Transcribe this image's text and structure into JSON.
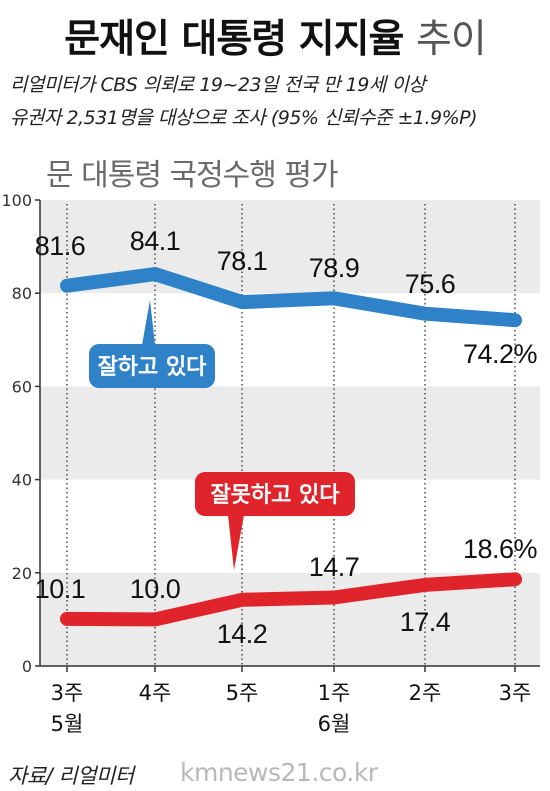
{
  "title_main": "문재인 대통령 지지율",
  "title_light": "추이",
  "description": [
    "리얼미터가 CBS 의뢰로 19~23일 전국 만 19세 이상",
    "유권자 2,531명을 대상으로 조사 (95% 신뢰수준 ±1.9%P)"
  ],
  "source": "자료/ 리얼미터",
  "watermark": "kmnews21.co.kr",
  "colors": {
    "positive": "#2f82c8",
    "negative": "#e0242b",
    "band": "#ebebeb"
  },
  "chart_data": {
    "type": "line",
    "title": "문 대통령 국정수행 평가",
    "categories": [
      "3주",
      "4주",
      "5주",
      "1주",
      "2주",
      "3주"
    ],
    "month_labels": [
      "5월",
      "",
      "",
      "6월",
      "",
      ""
    ],
    "ylim": [
      0,
      100
    ],
    "yticks": [
      0,
      20,
      40,
      60,
      80,
      100
    ],
    "grid": "alternating horizontal bands",
    "series": [
      {
        "name": "잘하고 있다",
        "values": [
          81.6,
          84.1,
          78.1,
          78.9,
          75.6,
          74.2
        ],
        "labels": [
          "81.6",
          "84.1",
          "78.1",
          "78.9",
          "75.6",
          "74.2%"
        ]
      },
      {
        "name": "잘못하고 있다",
        "values": [
          10.1,
          10.0,
          14.2,
          14.7,
          17.4,
          18.6
        ],
        "labels": [
          "10.1",
          "10.0",
          "14.2",
          "14.7",
          "17.4",
          "18.6%"
        ]
      }
    ]
  }
}
